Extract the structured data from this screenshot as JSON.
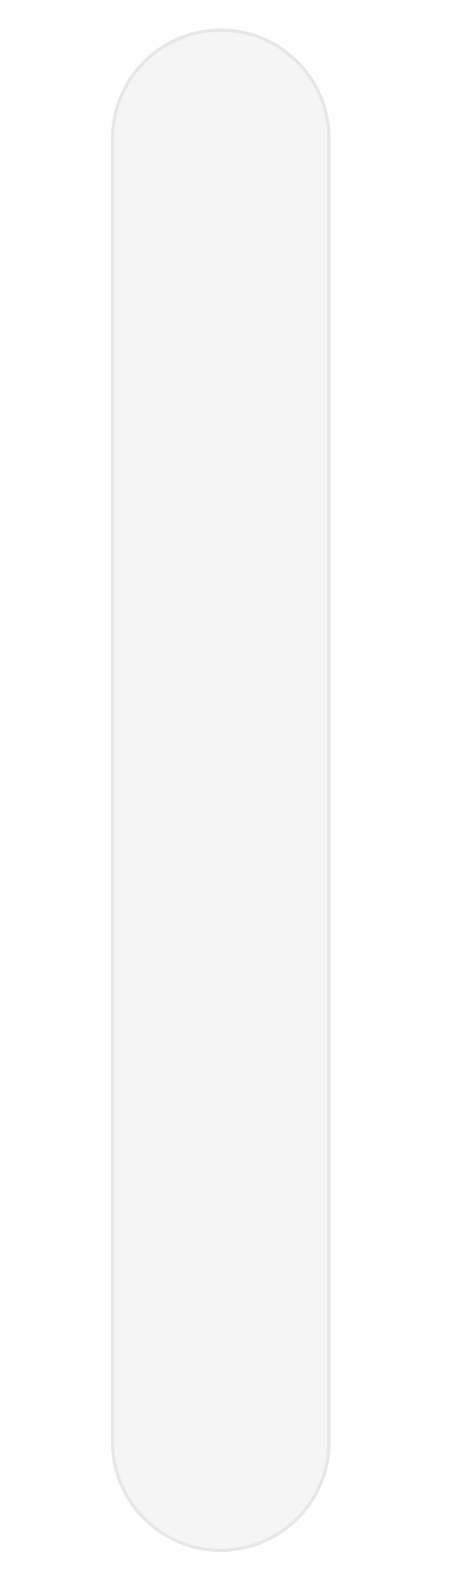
{
  "scrollbar": {
    "track_color": "#f5f5f5",
    "border_color": "#e6e6e6",
    "background_color": "#fefefe"
  }
}
